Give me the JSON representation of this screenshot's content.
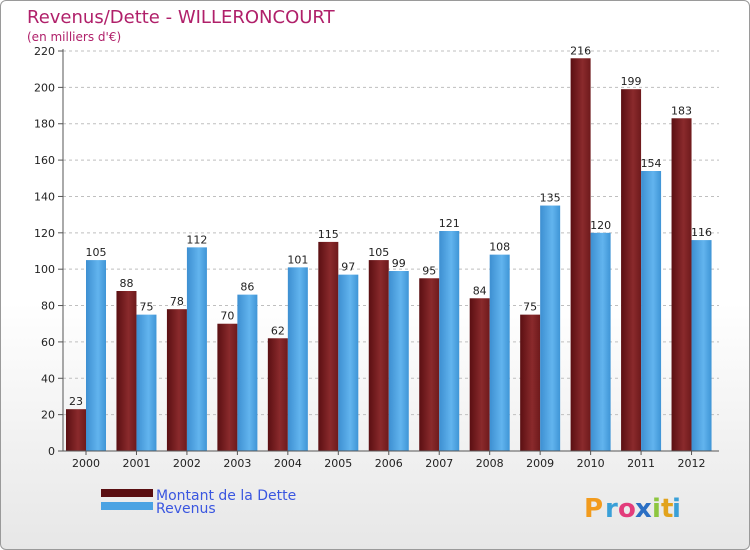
{
  "chart_data": {
    "type": "bar",
    "title": "Revenus/Dette - WILLERONCOURT",
    "subtitle": "(en milliers d'€)",
    "categories": [
      "2000",
      "2001",
      "2002",
      "2003",
      "2004",
      "2005",
      "2006",
      "2007",
      "2008",
      "2009",
      "2010",
      "2011",
      "2012"
    ],
    "series": [
      {
        "name": "Montant de la Dette",
        "color": "#7a1c1e",
        "values": [
          23,
          88,
          78,
          70,
          62,
          115,
          105,
          95,
          84,
          75,
          216,
          199,
          183
        ]
      },
      {
        "name": "Revenus",
        "color": "#4ba3e3",
        "values": [
          105,
          75,
          112,
          86,
          101,
          97,
          99,
          121,
          108,
          135,
          120,
          154,
          116
        ]
      }
    ],
    "ylim": [
      0,
      220
    ],
    "yticks": [
      0,
      20,
      40,
      60,
      80,
      100,
      120,
      140,
      160,
      180,
      200,
      220
    ],
    "grid": true,
    "legend": "bottom-left"
  },
  "logo": {
    "text": "Proxiti",
    "letters": [
      "P",
      "r",
      "o",
      "x",
      "i",
      "t",
      "i"
    ],
    "colors": [
      "#f29b1d",
      "#3aa0d8",
      "#e23c7b",
      "#2b6fc4",
      "#8dc63f",
      "#e2a31d",
      "#3aa0d8"
    ]
  }
}
